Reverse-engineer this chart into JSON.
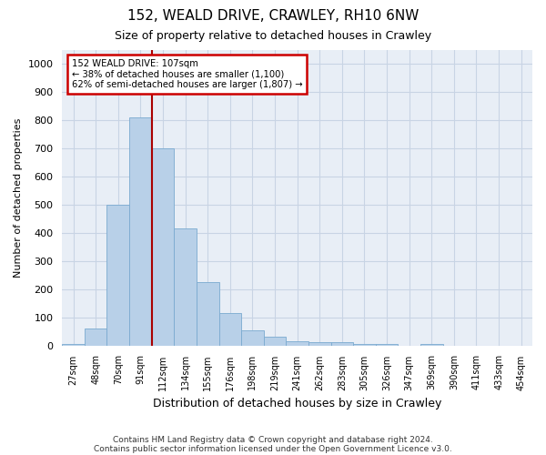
{
  "title1": "152, WEALD DRIVE, CRAWLEY, RH10 6NW",
  "title2": "Size of property relative to detached houses in Crawley",
  "xlabel": "Distribution of detached houses by size in Crawley",
  "ylabel": "Number of detached properties",
  "categories": [
    "27sqm",
    "48sqm",
    "70sqm",
    "91sqm",
    "112sqm",
    "134sqm",
    "155sqm",
    "176sqm",
    "198sqm",
    "219sqm",
    "241sqm",
    "262sqm",
    "283sqm",
    "305sqm",
    "326sqm",
    "347sqm",
    "369sqm",
    "390sqm",
    "411sqm",
    "433sqm",
    "454sqm"
  ],
  "values": [
    5,
    60,
    500,
    810,
    700,
    415,
    225,
    115,
    55,
    30,
    15,
    10,
    10,
    5,
    4,
    0,
    4,
    0,
    0,
    0,
    0
  ],
  "bar_color": "#b8d0e8",
  "bar_edge_color": "#7aaad0",
  "ann_line_color": "#aa0000",
  "ann_box_edge_color": "#cc0000",
  "grid_color": "#c8d4e4",
  "bg_color": "#e8eef6",
  "ylim": [
    0,
    1050
  ],
  "yticks": [
    0,
    100,
    200,
    300,
    400,
    500,
    600,
    700,
    800,
    900,
    1000
  ],
  "footer1": "Contains HM Land Registry data © Crown copyright and database right 2024.",
  "footer2": "Contains public sector information licensed under the Open Government Licence v3.0.",
  "prop_sqm": 107,
  "bin_starts": [
    27,
    48,
    70,
    91,
    112,
    134,
    155,
    176,
    198,
    219,
    241,
    262,
    283,
    305,
    326,
    347,
    369,
    390,
    411,
    433,
    454
  ],
  "pct_smaller": "38%",
  "n_smaller": "1,100",
  "pct_larger": "62%",
  "n_larger": "1,807"
}
